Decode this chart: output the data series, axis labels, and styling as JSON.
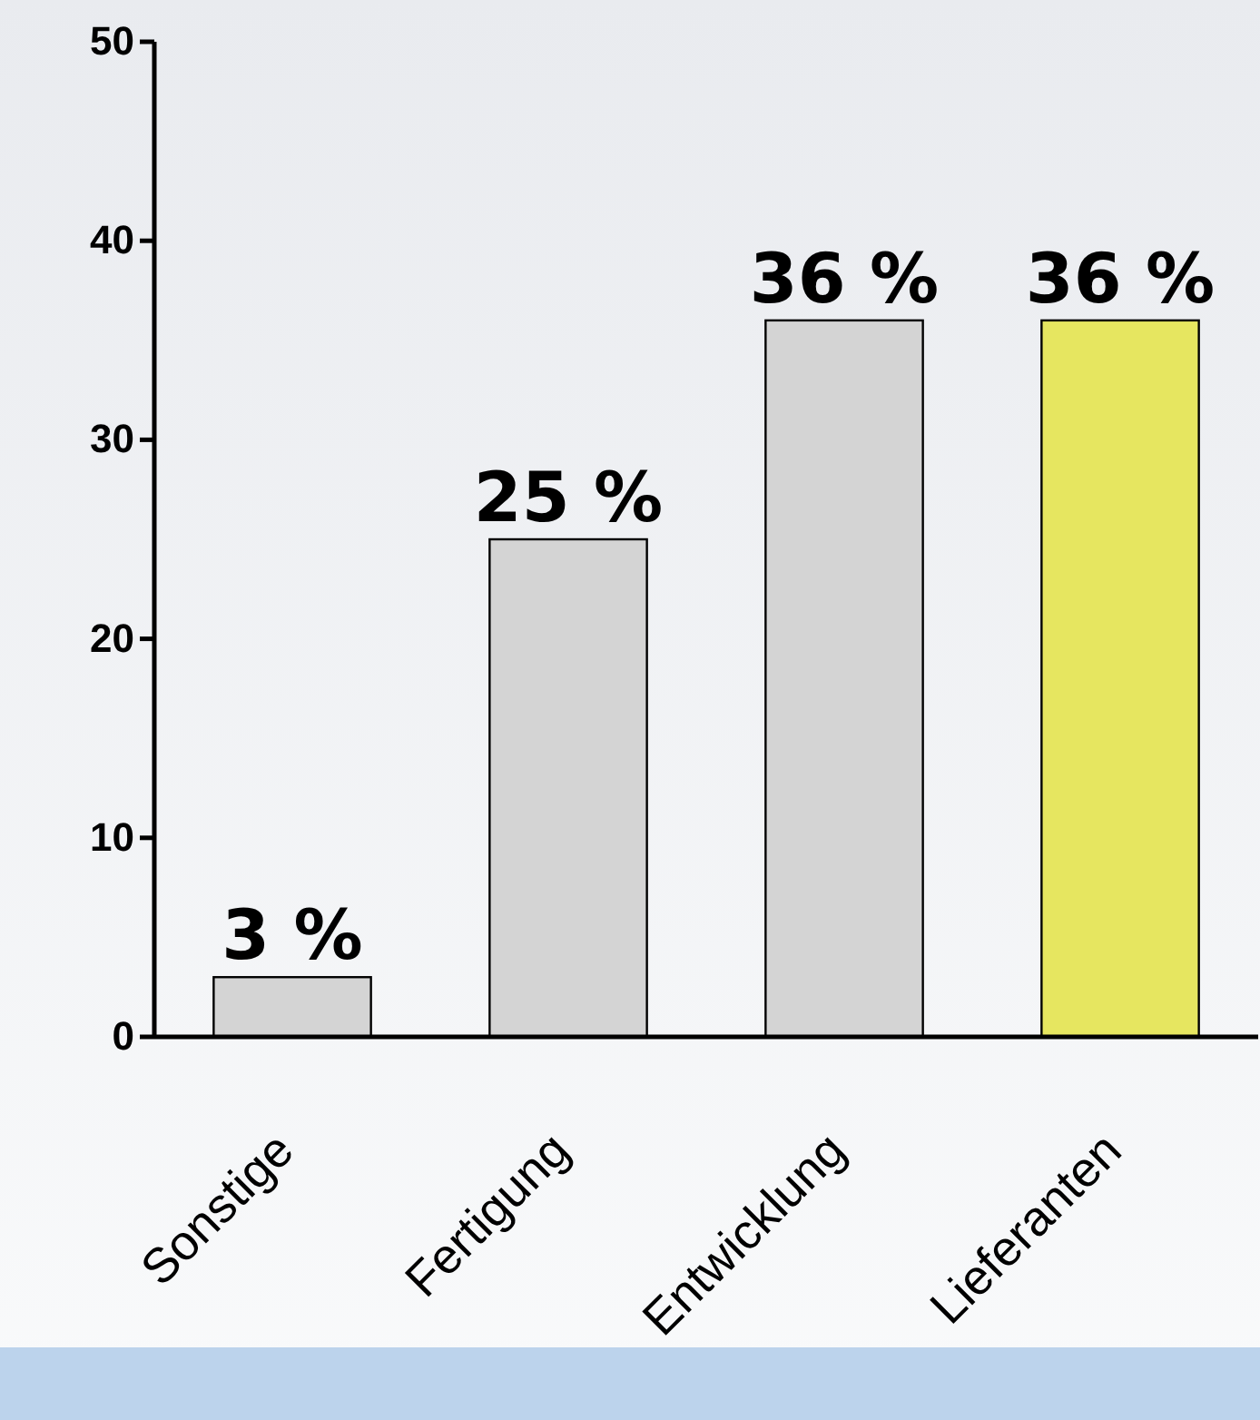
{
  "chart_data": {
    "type": "bar",
    "categories": [
      "Sonstige",
      "Fertigung",
      "Entwicklung",
      "Lieferanten"
    ],
    "values": [
      3,
      25,
      36,
      36
    ],
    "colors": [
      "#d4d4d4",
      "#d4d4d4",
      "#d4d4d4",
      "#e6e660"
    ],
    "value_labels": [
      "3 %",
      "25 %",
      "36 %",
      "36 %"
    ],
    "ylim": [
      0,
      50
    ],
    "yticks": [
      0,
      10,
      20,
      30,
      40,
      50
    ],
    "grid": false
  }
}
